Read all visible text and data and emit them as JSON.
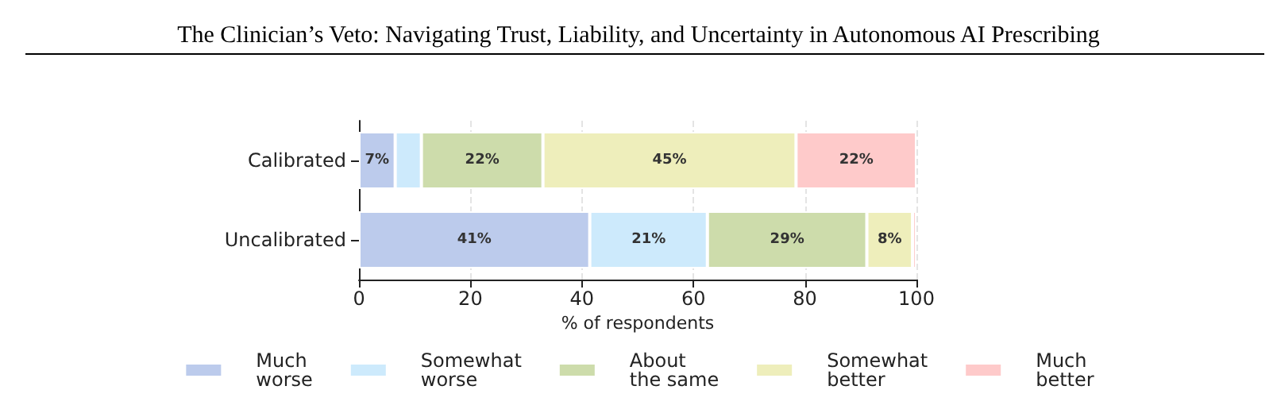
{
  "chart_data": {
    "type": "bar",
    "orientation": "horizontal",
    "stacked": true,
    "title": "The Clinician’s Veto: Navigating Trust, Liability, and Uncertainty in Autonomous AI Prescribing",
    "xlabel": "% of respondents",
    "categories": [
      "Calibrated",
      "Uncalibrated"
    ],
    "series": [
      {
        "name": "Much\nworse",
        "color": "#bccbec",
        "values": [
          6.5,
          41.4
        ],
        "value_labels": [
          "7%",
          "41%"
        ]
      },
      {
        "name": "Somewhat\nworse",
        "color": "#cdeafc",
        "values": [
          4.7,
          21.1
        ],
        "value_labels": [
          null,
          "21%"
        ]
      },
      {
        "name": "About\nthe same",
        "color": "#cddcab",
        "values": [
          21.8,
          28.6
        ],
        "value_labels": [
          "22%",
          "29%"
        ]
      },
      {
        "name": "Somewhat\nbetter",
        "color": "#eeeebb",
        "values": [
          45.4,
          8.2
        ],
        "value_labels": [
          "45%",
          "8%"
        ]
      },
      {
        "name": "Much\nbetter",
        "color": "#fecaca",
        "values": [
          21.6,
          0.7
        ],
        "value_labels": [
          "22%",
          null
        ]
      }
    ],
    "xlim": [
      0,
      100
    ],
    "xticks": [
      0,
      20,
      40,
      60,
      80,
      100
    ],
    "grid": "x",
    "legend": "bottom"
  }
}
